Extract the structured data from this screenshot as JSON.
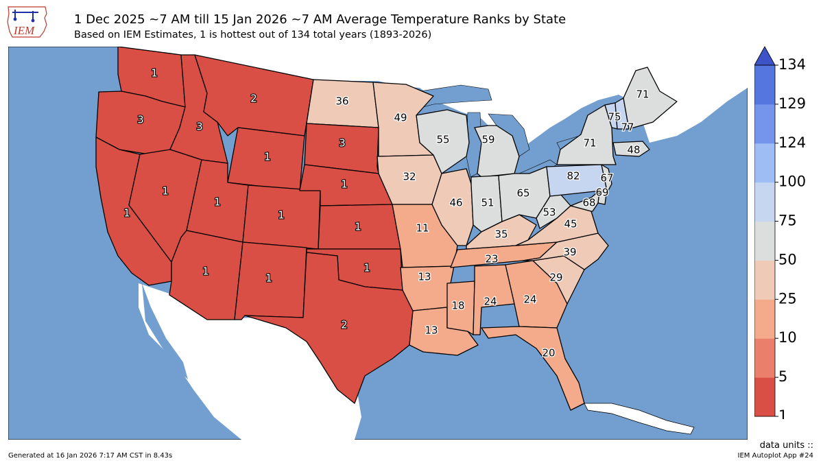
{
  "header": {
    "logo_text": "IEM",
    "title": "1 Dec 2025 ~7 AM till 15 Jan 2026 ~7 AM Average Temperature Ranks by State",
    "subtitle": "Based on IEM Estimates, 1 is hottest out of 134 total years (1893-2026)"
  },
  "colorbar": {
    "ticks": [
      "1",
      "5",
      "10",
      "25",
      "50",
      "75",
      "100",
      "124",
      "129",
      "134"
    ],
    "colors": [
      "#d94f45",
      "#ea806b",
      "#f4ab8c",
      "#efcbb7",
      "#dcdedd",
      "#c6d6f0",
      "#9fbdf5",
      "#7595ec",
      "#5576df",
      "#3d53c7"
    ]
  },
  "colors": {
    "ocean": "#729fcf",
    "land": "#ffffff",
    "border": "#000000"
  },
  "states": [
    {
      "name": "WA",
      "rank": "1",
      "color": "#d94f45"
    },
    {
      "name": "OR",
      "rank": "3",
      "color": "#d94f45"
    },
    {
      "name": "CA",
      "rank": "1",
      "color": "#d94f45"
    },
    {
      "name": "ID",
      "rank": "3",
      "color": "#d94f45"
    },
    {
      "name": "NV",
      "rank": "1",
      "color": "#d94f45"
    },
    {
      "name": "MT",
      "rank": "2",
      "color": "#d94f45"
    },
    {
      "name": "WY",
      "rank": "1",
      "color": "#d94f45"
    },
    {
      "name": "UT",
      "rank": "1",
      "color": "#d94f45"
    },
    {
      "name": "AZ",
      "rank": "1",
      "color": "#d94f45"
    },
    {
      "name": "CO",
      "rank": "1",
      "color": "#d94f45"
    },
    {
      "name": "NM",
      "rank": "1",
      "color": "#d94f45"
    },
    {
      "name": "ND",
      "rank": "36",
      "color": "#efcbb7"
    },
    {
      "name": "SD",
      "rank": "3",
      "color": "#d94f45"
    },
    {
      "name": "NE",
      "rank": "1",
      "color": "#d94f45"
    },
    {
      "name": "KS",
      "rank": "1",
      "color": "#d94f45"
    },
    {
      "name": "OK",
      "rank": "1",
      "color": "#d94f45"
    },
    {
      "name": "TX",
      "rank": "2",
      "color": "#d94f45"
    },
    {
      "name": "MN",
      "rank": "49",
      "color": "#efcbb7"
    },
    {
      "name": "IA",
      "rank": "32",
      "color": "#efcbb7"
    },
    {
      "name": "MO",
      "rank": "11",
      "color": "#f4ab8c"
    },
    {
      "name": "AR",
      "rank": "13",
      "color": "#f4ab8c"
    },
    {
      "name": "LA",
      "rank": "13",
      "color": "#f4ab8c"
    },
    {
      "name": "WI",
      "rank": "55",
      "color": "#dcdedd"
    },
    {
      "name": "IL",
      "rank": "46",
      "color": "#efcbb7"
    },
    {
      "name": "MS",
      "rank": "18",
      "color": "#f4ab8c"
    },
    {
      "name": "MI",
      "rank": "59",
      "color": "#dcdedd"
    },
    {
      "name": "IN",
      "rank": "51",
      "color": "#dcdedd"
    },
    {
      "name": "KY",
      "rank": "35",
      "color": "#efcbb7"
    },
    {
      "name": "TN",
      "rank": "23",
      "color": "#f4ab8c"
    },
    {
      "name": "AL",
      "rank": "24",
      "color": "#f4ab8c"
    },
    {
      "name": "OH",
      "rank": "65",
      "color": "#dcdedd"
    },
    {
      "name": "GA",
      "rank": "24",
      "color": "#f4ab8c"
    },
    {
      "name": "FL",
      "rank": "20",
      "color": "#f4ab8c"
    },
    {
      "name": "SC",
      "rank": "29",
      "color": "#efcbb7"
    },
    {
      "name": "NC",
      "rank": "39",
      "color": "#efcbb7"
    },
    {
      "name": "VA",
      "rank": "45",
      "color": "#efcbb7"
    },
    {
      "name": "WV",
      "rank": "53",
      "color": "#dcdedd"
    },
    {
      "name": "PA",
      "rank": "82",
      "color": "#c6d6f0"
    },
    {
      "name": "NY",
      "rank": "71",
      "color": "#dcdedd"
    },
    {
      "name": "VT",
      "rank": "75",
      "color": "#c6d6f0"
    },
    {
      "name": "NH",
      "rank": "77",
      "color": "#c6d6f0"
    },
    {
      "name": "ME",
      "rank": "71",
      "color": "#dcdedd"
    },
    {
      "name": "MA",
      "rank": "48",
      "color": "#dcdedd"
    },
    {
      "name": "NJ",
      "rank": "67",
      "color": "#dcdedd"
    },
    {
      "name": "DE",
      "rank": "69",
      "color": "#dcdedd"
    },
    {
      "name": "MD",
      "rank": "68",
      "color": "#dcdedd"
    }
  ],
  "footer": {
    "units": "data units ::",
    "generated": "Generated at 16 Jan 2026 7:17 AM CST in 8.43s",
    "app": "IEM Autoplot App #24"
  }
}
